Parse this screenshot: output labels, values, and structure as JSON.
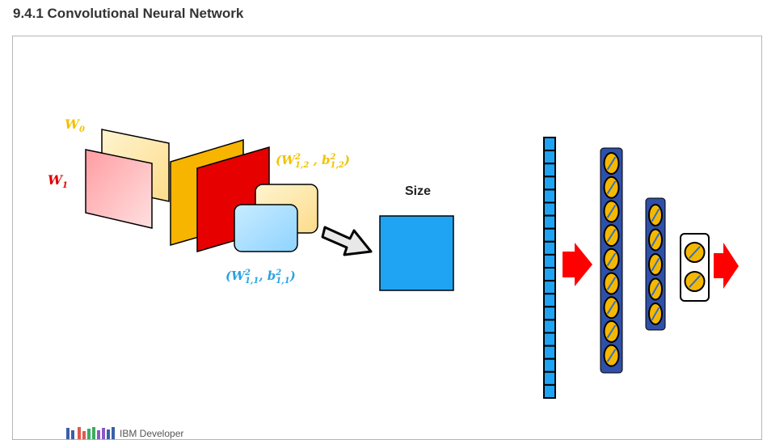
{
  "header": {
    "title": "9.4.1 Convolutional Neural Network"
  },
  "figure": {
    "labels": {
      "w0": {
        "base": "W",
        "sub": "0"
      },
      "w1": {
        "base": "W",
        "sub": "1"
      },
      "w12": {
        "open": "(",
        "w": "W",
        "w_sup": "2",
        "w_sub": "1,2",
        "sep": " , ",
        "b": "b",
        "b_sup": "2",
        "b_sub": "1,2",
        "close": ")"
      },
      "w11": {
        "open": "(",
        "w": "W",
        "w_sup": "2",
        "w_sub": "1,1",
        "sep": ", ",
        "b": "b",
        "b_sup": "2",
        "b_sub": "1,1",
        "close": ")"
      }
    },
    "size_label": "Size",
    "footer_text": "IBM Developer",
    "colors": {
      "yellow_label": "#f2c200",
      "red_label": "#e00000",
      "blue_label": "#2aa3e0",
      "light_yellow": "#fde9b0",
      "orange": "#f7b500",
      "red": "#e60000",
      "light_blue": "#aee0ff",
      "output_blue": "#1fa4f4",
      "arrow_red": "#ff0000",
      "node_yellow": "#f5b800",
      "bar_blue": "#2f50a8"
    }
  }
}
